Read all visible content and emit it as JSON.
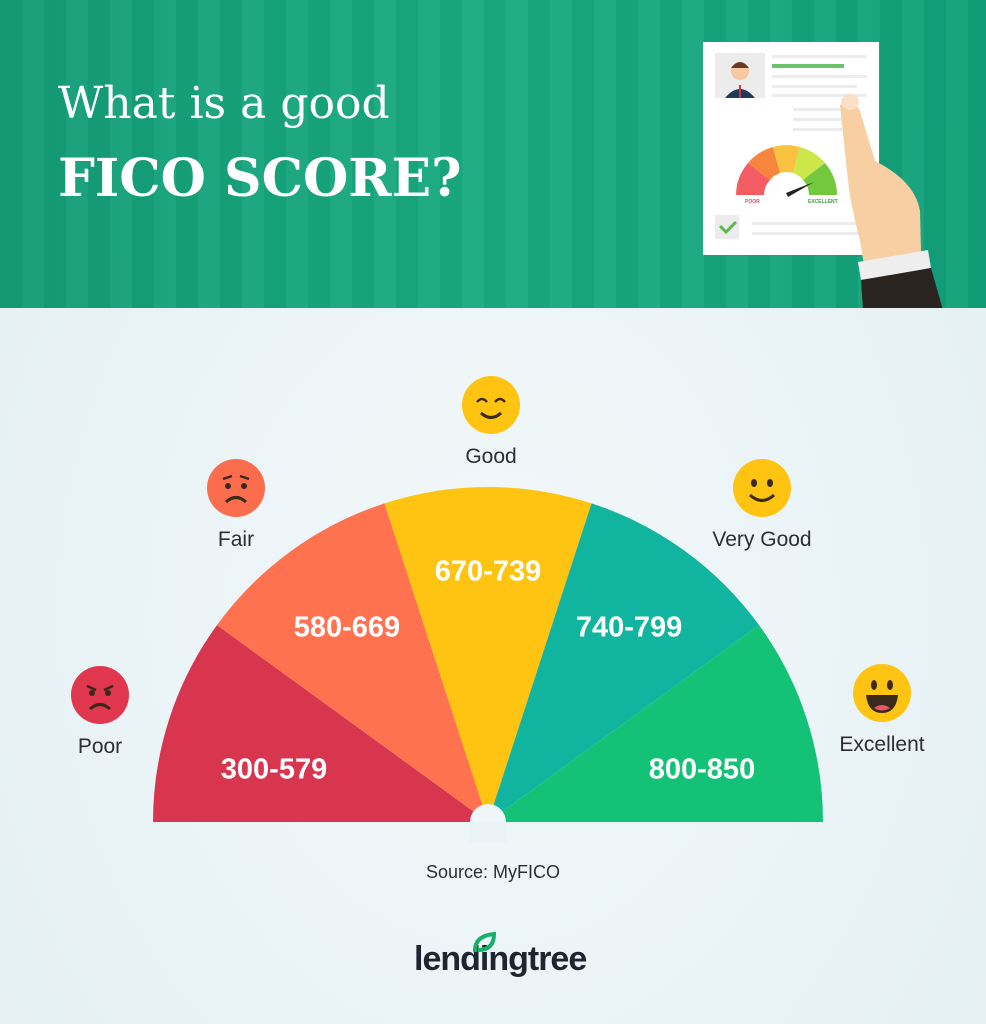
{
  "header": {
    "line1": "What is a good",
    "line2": "FICO SCORE?",
    "illustration": {
      "gauge_poor": "POOR",
      "gauge_excellent": "EXCELLENT"
    }
  },
  "chart_data": {
    "type": "gauge",
    "categories": [
      "Poor",
      "Fair",
      "Good",
      "Very Good",
      "Excellent"
    ],
    "ranges": [
      "300-579",
      "580-669",
      "670-739",
      "740-799",
      "800-850"
    ],
    "colors": [
      "#d8354f",
      "#fe7250",
      "#ffc412",
      "#10b49f",
      "#14c277"
    ],
    "faces": [
      "angry-face",
      "frown-face",
      "smile-face",
      "smile-face",
      "grin-face"
    ],
    "face_colors": [
      "#e0364e",
      "#fb6d4c",
      "#ffc412",
      "#ffc412",
      "#ffc412"
    ]
  },
  "source": "Source: MyFICO",
  "logo": "lendingtree"
}
